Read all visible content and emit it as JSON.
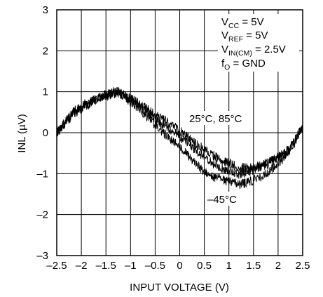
{
  "chart_data": {
    "type": "line",
    "title": "",
    "xlabel": "INPUT VOLTAGE (V)",
    "ylabel": "INL (µV)",
    "xlim": [
      -2.5,
      2.5
    ],
    "ylim": [
      -3,
      3
    ],
    "x_ticks": [
      -2.5,
      -2,
      -1.5,
      -1,
      -0.5,
      0,
      0.5,
      1,
      1.5,
      2,
      2.5
    ],
    "x_tick_labels": [
      "–2.5",
      "–2",
      "–1.5",
      "–1",
      "–0.5",
      "0",
      "0.5",
      "1",
      "1.5",
      "2",
      "2.5"
    ],
    "y_ticks": [
      -3,
      -2,
      -1,
      0,
      1,
      2,
      3
    ],
    "y_tick_labels": [
      "–3",
      "–2",
      "–1",
      "0",
      "1",
      "2",
      "3"
    ],
    "grid": true,
    "conditions": {
      "vcc": {
        "main": "V",
        "sub": "CC",
        "rest": " = 5V"
      },
      "vref": {
        "main": "V",
        "sub": "REF",
        "rest": " = 5V"
      },
      "vin": {
        "main": "V",
        "sub": "IN(CM)",
        "rest": " = 2.5V"
      },
      "fo": {
        "main": "f",
        "sub": "O",
        "rest": " = GND"
      }
    },
    "annotations": {
      "warm": "25°C, 85°C",
      "cold": "–45°C"
    },
    "x": [
      -2.5,
      -2.25,
      -2.0,
      -1.75,
      -1.5,
      -1.25,
      -1.0,
      -0.75,
      -0.5,
      -0.25,
      0.0,
      0.25,
      0.5,
      0.75,
      1.0,
      1.25,
      1.5,
      1.75,
      2.0,
      2.25,
      2.5
    ],
    "series": [
      {
        "values": [
          0.0,
          0.35,
          0.6,
          0.8,
          0.9,
          0.95,
          0.85,
          0.65,
          0.45,
          0.25,
          0.05,
          -0.2,
          -0.4,
          -0.6,
          -0.75,
          -0.85,
          -0.85,
          -0.75,
          -0.6,
          -0.4,
          0.1
        ]
      },
      {
        "values": [
          0.0,
          0.4,
          0.65,
          0.8,
          0.95,
          1.0,
          0.85,
          0.6,
          0.35,
          0.1,
          -0.1,
          -0.35,
          -0.6,
          -0.8,
          -0.95,
          -1.0,
          -0.9,
          -0.8,
          -0.6,
          -0.35,
          0.1
        ]
      },
      {
        "values": [
          0.0,
          0.4,
          0.6,
          0.75,
          0.9,
          0.95,
          0.75,
          0.5,
          0.2,
          -0.1,
          -0.35,
          -0.65,
          -0.95,
          -1.1,
          -1.2,
          -1.25,
          -1.15,
          -1.0,
          -0.75,
          -0.4,
          0.15
        ]
      }
    ],
    "line_color": "#000000"
  }
}
